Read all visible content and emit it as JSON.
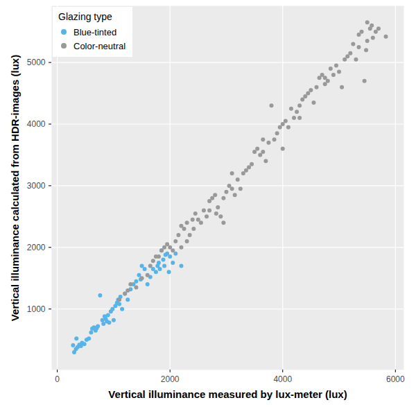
{
  "chart_data": {
    "type": "scatter",
    "x_label": "Vertical illuminance measured by lux-meter (lux)",
    "y_label": "Vertical illuminance calculated from HDR-images (lux)",
    "legend_title": "Glazing type",
    "legend": "top-left",
    "grid": true,
    "xlim": [
      -100,
      6150
    ],
    "ylim": [
      12,
      5918
    ],
    "xticks": [
      0,
      2000,
      4000,
      6000
    ],
    "yticks": [
      1000,
      2000,
      3000,
      4000,
      5000
    ],
    "series": [
      {
        "name": "Blue-tinted",
        "color": "#56b4e9",
        "marker": "circle",
        "x": [
          280,
          300,
          330,
          340,
          360,
          390,
          420,
          440,
          480,
          520,
          560,
          600,
          620,
          650,
          680,
          700,
          720,
          760,
          800,
          820,
          840,
          860,
          880,
          900,
          920,
          950,
          980,
          1000,
          1030,
          1060,
          1080,
          1100,
          1120,
          1150,
          1200,
          1250,
          1300,
          1350,
          1400,
          1450,
          1480,
          1500,
          1550,
          1600,
          1650,
          1700,
          1750,
          1780,
          1800,
          1820,
          1850,
          1880,
          1900,
          1920,
          1950,
          2000,
          2050,
          2100,
          2200,
          1980
        ],
        "values": [
          410,
          300,
          350,
          520,
          380,
          420,
          400,
          450,
          430,
          500,
          520,
          620,
          680,
          700,
          650,
          690,
          720,
          1220,
          820,
          760,
          880,
          840,
          800,
          900,
          780,
          960,
          1000,
          820,
          1050,
          1100,
          1150,
          1080,
          1200,
          1000,
          1250,
          1150,
          1320,
          1400,
          1450,
          1550,
          1480,
          1700,
          1650,
          1400,
          1520,
          1650,
          1600,
          1700,
          1750,
          1650,
          1950,
          1800,
          1700,
          1880,
          1900,
          1850,
          1750,
          1900,
          1700,
          1600
        ]
      },
      {
        "name": "Color-neutral",
        "color": "#999999",
        "marker": "circle",
        "x": [
          1100,
          1250,
          1400,
          1500,
          1600,
          1700,
          1750,
          1850,
          1900,
          1950,
          2000,
          2050,
          2100,
          2150,
          2200,
          2200,
          2250,
          2300,
          2350,
          2400,
          2420,
          2450,
          2500,
          2550,
          2600,
          2650,
          2700,
          2750,
          2800,
          2820,
          2850,
          2900,
          2950,
          2950,
          3000,
          3050,
          3100,
          3150,
          3200,
          3250,
          3300,
          3350,
          3400,
          3450,
          3500,
          3550,
          3600,
          3650,
          3700,
          3750,
          3800,
          3850,
          3900,
          3950,
          4000,
          4000,
          4050,
          4100,
          4150,
          4200,
          4250,
          4300,
          4350,
          4400,
          4450,
          4500,
          4550,
          4600,
          4650,
          4700,
          4750,
          4800,
          4850,
          4900,
          4950,
          5000,
          5050,
          5100,
          5150,
          5200,
          5250,
          5300,
          5350,
          5400,
          5450,
          5480,
          5500,
          5550,
          5600,
          5650,
          5700,
          5830,
          5500,
          5580,
          3650,
          2300,
          1800,
          1650,
          2700,
          3100,
          4300,
          4750,
          5350,
          1200,
          1300
        ],
        "values": [
          1150,
          1300,
          1350,
          1500,
          1550,
          1780,
          1850,
          1950,
          2000,
          2050,
          2000,
          1950,
          2100,
          2200,
          2000,
          2350,
          2300,
          2400,
          2200,
          2450,
          2300,
          2550,
          2450,
          2400,
          2600,
          2500,
          2750,
          2800,
          2850,
          2550,
          2650,
          2500,
          2400,
          2800,
          2900,
          3000,
          2950,
          2850,
          3100,
          2950,
          3200,
          3250,
          3300,
          3350,
          3550,
          3600,
          3500,
          3550,
          3400,
          3700,
          4300,
          3750,
          3850,
          3950,
          3600,
          4000,
          4050,
          3950,
          4250,
          4100,
          4200,
          4300,
          4400,
          4450,
          4500,
          4550,
          4350,
          4600,
          4750,
          4800,
          4650,
          4700,
          4900,
          4800,
          4950,
          4850,
          4600,
          5050,
          5100,
          5150,
          5300,
          5050,
          5450,
          5500,
          4700,
          5200,
          5650,
          5550,
          5400,
          5500,
          5550,
          5420,
          5350,
          5600,
          3750,
          2100,
          1850,
          1700,
          2600,
          3200,
          4100,
          4750,
          5250,
          1250,
          1400
        ]
      }
    ]
  }
}
